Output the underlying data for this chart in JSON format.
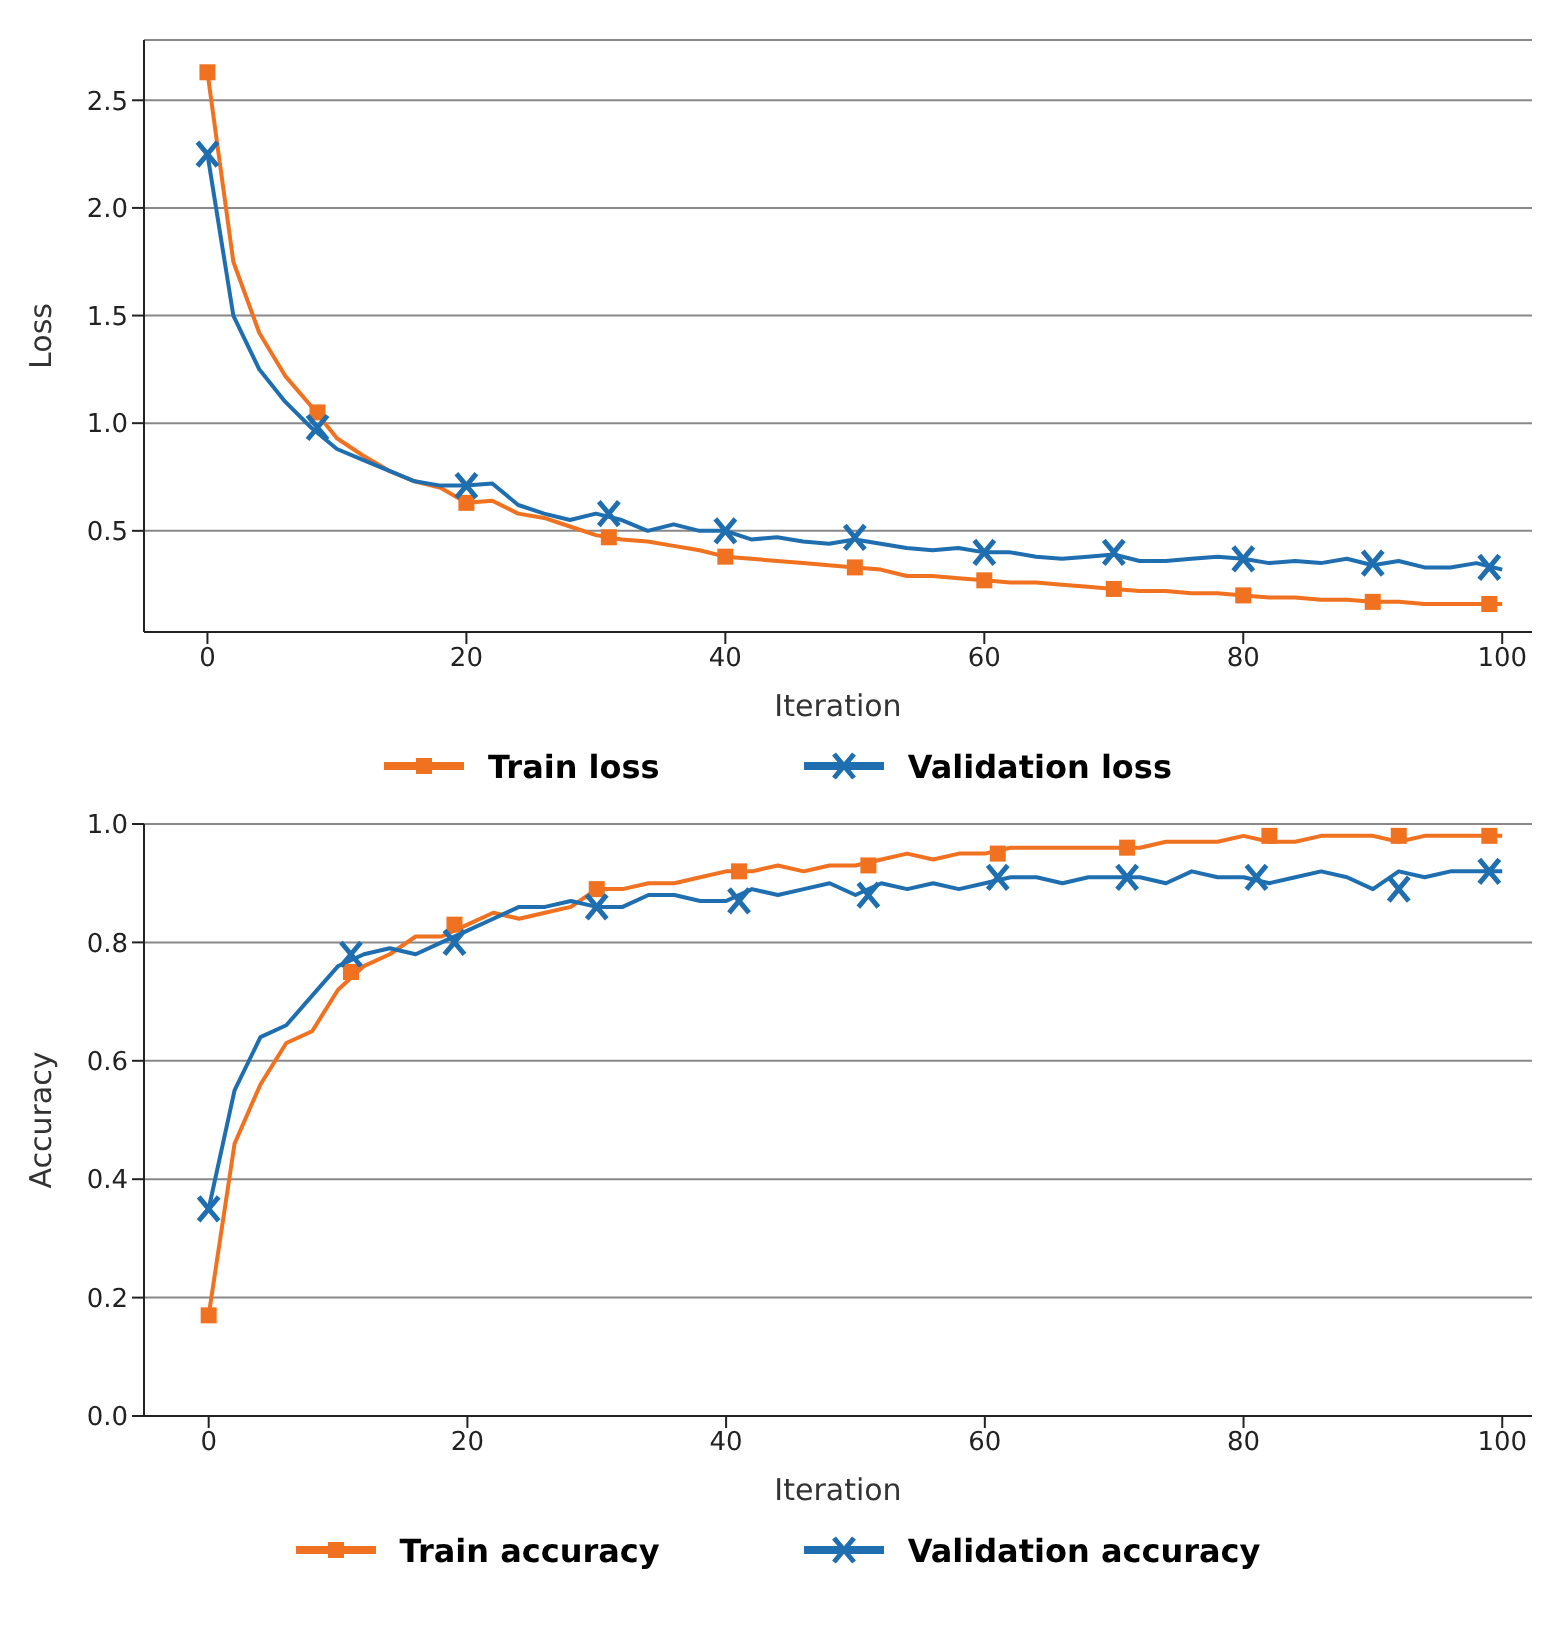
{
  "chart_data": [
    {
      "type": "line",
      "xlabel": "Iteration",
      "ylabel": "Loss",
      "xlim": [
        -4.9,
        102.3
      ],
      "xticks": [
        0,
        20,
        40,
        60,
        80,
        100
      ],
      "ylim": [
        0.03,
        2.78
      ],
      "yticks": [
        {
          "value": 0.5,
          "label": "0.5"
        },
        {
          "value": 1,
          "label": "1.0"
        },
        {
          "value": 1.5,
          "label": "1.5"
        },
        {
          "value": 2,
          "label": "2.0"
        },
        {
          "value": 2.5,
          "label": "2.5"
        }
      ],
      "grid": "y",
      "legend": "bottom",
      "line_style": "solid",
      "x": [
        0,
        2,
        4,
        6,
        8,
        10,
        12,
        14,
        16,
        18,
        20,
        22,
        24,
        26,
        28,
        30,
        32,
        34,
        36,
        38,
        40,
        42,
        44,
        46,
        48,
        50,
        52,
        54,
        56,
        58,
        60,
        62,
        64,
        66,
        68,
        70,
        72,
        74,
        76,
        78,
        80,
        82,
        84,
        86,
        88,
        90,
        92,
        94,
        96,
        98,
        100
      ],
      "series": [
        {
          "name": "Train loss",
          "color": "#f0711f",
          "values": [
            2.63,
            1.75,
            1.42,
            1.22,
            1.08,
            0.93,
            0.85,
            0.78,
            0.73,
            0.7,
            0.63,
            0.64,
            0.58,
            0.56,
            0.52,
            0.48,
            0.46,
            0.45,
            0.43,
            0.41,
            0.38,
            0.37,
            0.36,
            0.35,
            0.34,
            0.33,
            0.32,
            0.29,
            0.29,
            0.28,
            0.27,
            0.26,
            0.26,
            0.25,
            0.24,
            0.23,
            0.22,
            0.22,
            0.21,
            0.21,
            0.2,
            0.19,
            0.19,
            0.18,
            0.18,
            0.17,
            0.17,
            0.16,
            0.16,
            0.16,
            0.16
          ]
        },
        {
          "name": "Validation loss",
          "color": "#1f6fb0",
          "values": [
            2.25,
            1.5,
            1.25,
            1.1,
            0.98,
            0.88,
            0.83,
            0.78,
            0.73,
            0.71,
            0.71,
            0.72,
            0.62,
            0.58,
            0.55,
            0.58,
            0.55,
            0.5,
            0.53,
            0.5,
            0.5,
            0.46,
            0.47,
            0.45,
            0.44,
            0.46,
            0.44,
            0.42,
            0.41,
            0.42,
            0.4,
            0.4,
            0.38,
            0.37,
            0.38,
            0.39,
            0.36,
            0.36,
            0.37,
            0.38,
            0.37,
            0.35,
            0.36,
            0.35,
            0.37,
            0.34,
            0.36,
            0.33,
            0.33,
            0.35,
            0.32
          ]
        },
        {
          "type": "scatter",
          "color": "#f0711f",
          "marker": "square",
          "x": [
            0,
            8.5,
            20,
            31,
            40,
            50,
            60,
            70,
            80,
            90,
            99
          ],
          "values": [
            2.63,
            1.05,
            0.63,
            0.47,
            0.38,
            0.33,
            0.27,
            0.23,
            0.2,
            0.17,
            0.16
          ]
        },
        {
          "type": "scatter",
          "color": "#1f6fb0",
          "marker": "cross",
          "x": [
            0,
            8.5,
            20,
            31,
            40,
            50,
            60,
            70,
            80,
            90,
            99
          ],
          "values": [
            2.25,
            0.98,
            0.71,
            0.58,
            0.5,
            0.47,
            0.4,
            0.4,
            0.37,
            0.35,
            0.33
          ]
        }
      ]
    },
    {
      "type": "line",
      "xlabel": "Iteration",
      "ylabel": "Accuracy",
      "xlim": [
        -5,
        102.3
      ],
      "xticks": [
        0,
        20,
        40,
        60,
        80,
        100
      ],
      "ylim": [
        0,
        1
      ],
      "yticks": [
        {
          "value": 0,
          "label": "0.0"
        },
        {
          "value": 0.2,
          "label": "0.2"
        },
        {
          "value": 0.4,
          "label": "0.4"
        },
        {
          "value": 0.6,
          "label": "0.6"
        },
        {
          "value": 0.8,
          "label": "0.8"
        },
        {
          "value": 1,
          "label": "1.0"
        }
      ],
      "grid": "y",
      "legend": "bottom",
      "line_style": "solid",
      "x": [
        0,
        2,
        4,
        6,
        8,
        10,
        12,
        14,
        16,
        18,
        20,
        22,
        24,
        26,
        28,
        30,
        32,
        34,
        36,
        38,
        40,
        42,
        44,
        46,
        48,
        50,
        52,
        54,
        56,
        58,
        60,
        62,
        64,
        66,
        68,
        70,
        72,
        74,
        76,
        78,
        80,
        82,
        84,
        86,
        88,
        90,
        92,
        94,
        96,
        98,
        100
      ],
      "series": [
        {
          "name": "Train accuracy",
          "color": "#f0711f",
          "values": [
            0.17,
            0.46,
            0.56,
            0.63,
            0.65,
            0.72,
            0.76,
            0.78,
            0.81,
            0.81,
            0.83,
            0.85,
            0.84,
            0.85,
            0.86,
            0.89,
            0.89,
            0.9,
            0.9,
            0.91,
            0.92,
            0.92,
            0.93,
            0.92,
            0.93,
            0.93,
            0.94,
            0.95,
            0.94,
            0.95,
            0.95,
            0.96,
            0.96,
            0.96,
            0.96,
            0.96,
            0.96,
            0.97,
            0.97,
            0.97,
            0.98,
            0.97,
            0.97,
            0.98,
            0.98,
            0.98,
            0.97,
            0.98,
            0.98,
            0.98,
            0.98
          ]
        },
        {
          "name": "Validation accuracy",
          "color": "#1f6fb0",
          "values": [
            0.35,
            0.55,
            0.64,
            0.66,
            0.71,
            0.76,
            0.78,
            0.79,
            0.78,
            0.8,
            0.82,
            0.84,
            0.86,
            0.86,
            0.87,
            0.86,
            0.86,
            0.88,
            0.88,
            0.87,
            0.87,
            0.89,
            0.88,
            0.89,
            0.9,
            0.88,
            0.9,
            0.89,
            0.9,
            0.89,
            0.9,
            0.91,
            0.91,
            0.9,
            0.91,
            0.91,
            0.91,
            0.9,
            0.92,
            0.91,
            0.91,
            0.9,
            0.91,
            0.92,
            0.91,
            0.89,
            0.92,
            0.91,
            0.92,
            0.92,
            0.92
          ]
        },
        {
          "type": "scatter",
          "color": "#f0711f",
          "marker": "square",
          "x": [
            0,
            11,
            19,
            30,
            41,
            51,
            61,
            71,
            82,
            92,
            99
          ],
          "values": [
            0.17,
            0.75,
            0.83,
            0.89,
            0.92,
            0.93,
            0.95,
            0.96,
            0.98,
            0.98,
            0.98
          ]
        },
        {
          "type": "scatter",
          "color": "#1f6fb0",
          "marker": "cross",
          "x": [
            0,
            11,
            19,
            30,
            41,
            51,
            61,
            71,
            81,
            92,
            99
          ],
          "values": [
            0.35,
            0.78,
            0.8,
            0.86,
            0.87,
            0.88,
            0.91,
            0.91,
            0.91,
            0.89,
            0.92
          ]
        }
      ]
    }
  ]
}
